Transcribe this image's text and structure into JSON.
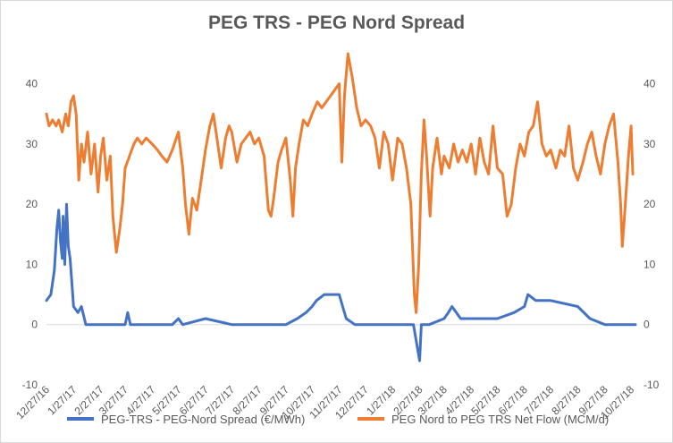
{
  "chart_data": {
    "type": "line",
    "title": "PEG TRS - PEG Nord Spread",
    "x_tick_labels": [
      "12/27/16",
      "1/27/17",
      "2/27/17",
      "3/27/17",
      "4/27/17",
      "5/27/17",
      "6/27/17",
      "7/27/17",
      "8/27/17",
      "9/27/17",
      "10/27/17",
      "11/27/17",
      "12/27/17",
      "1/27/18",
      "2/27/18",
      "3/27/18",
      "4/27/18",
      "5/27/18",
      "6/27/18",
      "7/27/18",
      "8/27/18",
      "9/27/18",
      "10/27/18"
    ],
    "y_left_ticks": [
      "-10",
      "0",
      "10",
      "20",
      "30",
      "40"
    ],
    "y_right_ticks": [
      "-10",
      "0",
      "10",
      "20",
      "30",
      "40"
    ],
    "ylim": [
      -10,
      45
    ],
    "grid": false,
    "legend_position": "bottom",
    "series": [
      {
        "name": "PEG-TRS - PEG-Nord Spread (€/MWh)",
        "color": "#4472C4",
        "axis": "left",
        "points": [
          [
            "12/27/16",
            4
          ],
          [
            "1/1/17",
            5
          ],
          [
            "1/5/17",
            9
          ],
          [
            "1/8/17",
            16
          ],
          [
            "1/10/17",
            19
          ],
          [
            "1/12/17",
            14
          ],
          [
            "1/14/17",
            11
          ],
          [
            "1/15/17",
            18
          ],
          [
            "1/17/17",
            10
          ],
          [
            "1/19/17",
            20
          ],
          [
            "1/21/17",
            13
          ],
          [
            "1/23/17",
            11
          ],
          [
            "1/25/17",
            7
          ],
          [
            "1/27/17",
            3
          ],
          [
            "2/1/17",
            2
          ],
          [
            "2/5/17",
            3
          ],
          [
            "2/10/17",
            0
          ],
          [
            "2/27/17",
            0
          ],
          [
            "3/27/17",
            0
          ],
          [
            "3/30/17",
            2
          ],
          [
            "4/2/17",
            0
          ],
          [
            "4/27/17",
            0
          ],
          [
            "5/20/17",
            0
          ],
          [
            "5/27/17",
            1
          ],
          [
            "6/1/17",
            0
          ],
          [
            "6/27/17",
            1
          ],
          [
            "7/27/17",
            0
          ],
          [
            "8/27/17",
            0
          ],
          [
            "9/27/17",
            0
          ],
          [
            "10/10/17",
            1
          ],
          [
            "10/20/17",
            2
          ],
          [
            "10/27/17",
            3
          ],
          [
            "11/1/17",
            4
          ],
          [
            "11/10/17",
            5
          ],
          [
            "11/20/17",
            5
          ],
          [
            "11/27/17",
            5
          ],
          [
            "12/1/17",
            3
          ],
          [
            "12/5/17",
            1
          ],
          [
            "12/15/17",
            0
          ],
          [
            "12/27/17",
            0
          ],
          [
            "1/27/18",
            0
          ],
          [
            "2/20/18",
            0
          ],
          [
            "2/27/18",
            -6
          ],
          [
            "3/1/18",
            0
          ],
          [
            "3/10/18",
            0
          ],
          [
            "3/27/18",
            1
          ],
          [
            "4/1/18",
            2
          ],
          [
            "4/5/18",
            3
          ],
          [
            "4/15/18",
            1
          ],
          [
            "4/27/18",
            1
          ],
          [
            "5/27/18",
            1
          ],
          [
            "6/15/18",
            2
          ],
          [
            "6/27/18",
            3
          ],
          [
            "7/1/18",
            5
          ],
          [
            "7/10/18",
            4
          ],
          [
            "7/27/18",
            4
          ],
          [
            "8/27/18",
            3
          ],
          [
            "9/10/18",
            1
          ],
          [
            "9/27/18",
            0
          ],
          [
            "10/27/18",
            0
          ],
          [
            "11/1/18",
            0
          ]
        ]
      },
      {
        "name": "PEG Nord to PEG TRS Net Flow (MCM/d)",
        "color": "#ED7D31",
        "axis": "right",
        "points": [
          [
            "12/27/16",
            35
          ],
          [
            "12/30/16",
            33
          ],
          [
            "1/3/17",
            34
          ],
          [
            "1/7/17",
            33
          ],
          [
            "1/10/17",
            34
          ],
          [
            "1/14/17",
            32
          ],
          [
            "1/18/17",
            35
          ],
          [
            "1/21/17",
            33
          ],
          [
            "1/24/17",
            37
          ],
          [
            "1/27/17",
            38
          ],
          [
            "1/30/17",
            35
          ],
          [
            "2/2/17",
            24
          ],
          [
            "2/5/17",
            30
          ],
          [
            "2/8/17",
            27
          ],
          [
            "2/12/17",
            32
          ],
          [
            "2/16/17",
            25
          ],
          [
            "2/20/17",
            30
          ],
          [
            "2/24/17",
            22
          ],
          [
            "2/27/17",
            28
          ],
          [
            "3/2/17",
            31
          ],
          [
            "3/6/17",
            24
          ],
          [
            "3/10/17",
            28
          ],
          [
            "3/13/17",
            18
          ],
          [
            "3/17/17",
            12
          ],
          [
            "3/21/17",
            16
          ],
          [
            "3/24/17",
            20
          ],
          [
            "3/27/17",
            26
          ],
          [
            "4/1/17",
            28
          ],
          [
            "4/6/17",
            30
          ],
          [
            "4/10/17",
            31
          ],
          [
            "4/15/17",
            30
          ],
          [
            "4/20/17",
            31
          ],
          [
            "4/27/17",
            30
          ],
          [
            "5/3/17",
            29
          ],
          [
            "5/8/17",
            28
          ],
          [
            "5/14/17",
            27
          ],
          [
            "5/20/17",
            29
          ],
          [
            "5/27/17",
            32
          ],
          [
            "6/1/17",
            26
          ],
          [
            "6/4/17",
            20
          ],
          [
            "6/8/17",
            15
          ],
          [
            "6/12/17",
            21
          ],
          [
            "6/17/17",
            19
          ],
          [
            "6/22/17",
            24
          ],
          [
            "6/27/17",
            29
          ],
          [
            "7/2/17",
            33
          ],
          [
            "7/6/17",
            35
          ],
          [
            "7/10/17",
            31
          ],
          [
            "7/15/17",
            26
          ],
          [
            "7/20/17",
            31
          ],
          [
            "7/24/17",
            33
          ],
          [
            "7/27/17",
            32
          ],
          [
            "8/2/17",
            27
          ],
          [
            "8/7/17",
            30
          ],
          [
            "8/12/17",
            31
          ],
          [
            "8/17/17",
            32
          ],
          [
            "8/22/17",
            30
          ],
          [
            "8/27/17",
            31
          ],
          [
            "9/2/17",
            28
          ],
          [
            "9/7/17",
            19
          ],
          [
            "9/10/17",
            18
          ],
          [
            "9/13/17",
            21
          ],
          [
            "9/18/17",
            27
          ],
          [
            "9/22/17",
            29
          ],
          [
            "9/27/17",
            31
          ],
          [
            "10/2/17",
            24
          ],
          [
            "10/5/17",
            18
          ],
          [
            "10/8/17",
            26
          ],
          [
            "10/12/17",
            30
          ],
          [
            "10/17/17",
            34
          ],
          [
            "10/22/17",
            33
          ],
          [
            "10/27/17",
            35
          ],
          [
            "11/2/17",
            37
          ],
          [
            "11/7/17",
            36
          ],
          [
            "11/12/17",
            37
          ],
          [
            "11/17/17",
            38
          ],
          [
            "11/22/17",
            39
          ],
          [
            "11/27/17",
            40
          ],
          [
            "11/30/17",
            27
          ],
          [
            "12/3/17",
            38
          ],
          [
            "12/7/17",
            45
          ],
          [
            "12/12/17",
            41
          ],
          [
            "12/17/17",
            36
          ],
          [
            "12/22/17",
            33
          ],
          [
            "12/27/17",
            34
          ],
          [
            "1/2/18",
            33
          ],
          [
            "1/7/18",
            31
          ],
          [
            "1/12/18",
            26
          ],
          [
            "1/17/18",
            32
          ],
          [
            "1/22/18",
            30
          ],
          [
            "1/27/18",
            24
          ],
          [
            "2/2/18",
            31
          ],
          [
            "2/7/18",
            30
          ],
          [
            "2/12/18",
            26
          ],
          [
            "2/17/18",
            20
          ],
          [
            "2/21/18",
            5
          ],
          [
            "2/23/18",
            2
          ],
          [
            "2/26/18",
            10
          ],
          [
            "3/1/18",
            25
          ],
          [
            "3/4/18",
            34
          ],
          [
            "3/7/18",
            28
          ],
          [
            "3/11/18",
            18
          ],
          [
            "3/14/18",
            26
          ],
          [
            "3/19/18",
            31
          ],
          [
            "3/24/18",
            25
          ],
          [
            "3/27/18",
            28
          ],
          [
            "4/2/18",
            26
          ],
          [
            "4/7/18",
            30
          ],
          [
            "4/12/18",
            27
          ],
          [
            "4/17/18",
            29
          ],
          [
            "4/22/18",
            27
          ],
          [
            "4/27/18",
            30
          ],
          [
            "5/2/18",
            25
          ],
          [
            "5/7/18",
            31
          ],
          [
            "5/12/18",
            27
          ],
          [
            "5/17/18",
            25
          ],
          [
            "5/22/18",
            33
          ],
          [
            "5/27/18",
            26
          ],
          [
            "6/2/18",
            25
          ],
          [
            "6/7/18",
            18
          ],
          [
            "6/12/18",
            20
          ],
          [
            "6/17/18",
            26
          ],
          [
            "6/22/18",
            30
          ],
          [
            "6/27/18",
            28
          ],
          [
            "7/2/18",
            32
          ],
          [
            "7/7/18",
            33
          ],
          [
            "7/12/18",
            37
          ],
          [
            "7/17/18",
            30
          ],
          [
            "7/22/18",
            28
          ],
          [
            "7/27/18",
            29
          ],
          [
            "8/2/18",
            26
          ],
          [
            "8/7/18",
            29
          ],
          [
            "8/12/18",
            28
          ],
          [
            "8/17/18",
            33
          ],
          [
            "8/22/18",
            26
          ],
          [
            "8/27/18",
            24
          ],
          [
            "9/2/18",
            27
          ],
          [
            "9/7/18",
            30
          ],
          [
            "9/12/18",
            32
          ],
          [
            "9/17/18",
            28
          ],
          [
            "9/22/18",
            25
          ],
          [
            "9/27/18",
            30
          ],
          [
            "10/2/18",
            33
          ],
          [
            "10/7/18",
            35
          ],
          [
            "10/12/18",
            27
          ],
          [
            "10/15/18",
            20
          ],
          [
            "10/17/18",
            13
          ],
          [
            "10/20/18",
            19
          ],
          [
            "10/24/18",
            28
          ],
          [
            "10/27/18",
            33
          ],
          [
            "10/29/18",
            25
          ]
        ]
      }
    ]
  }
}
